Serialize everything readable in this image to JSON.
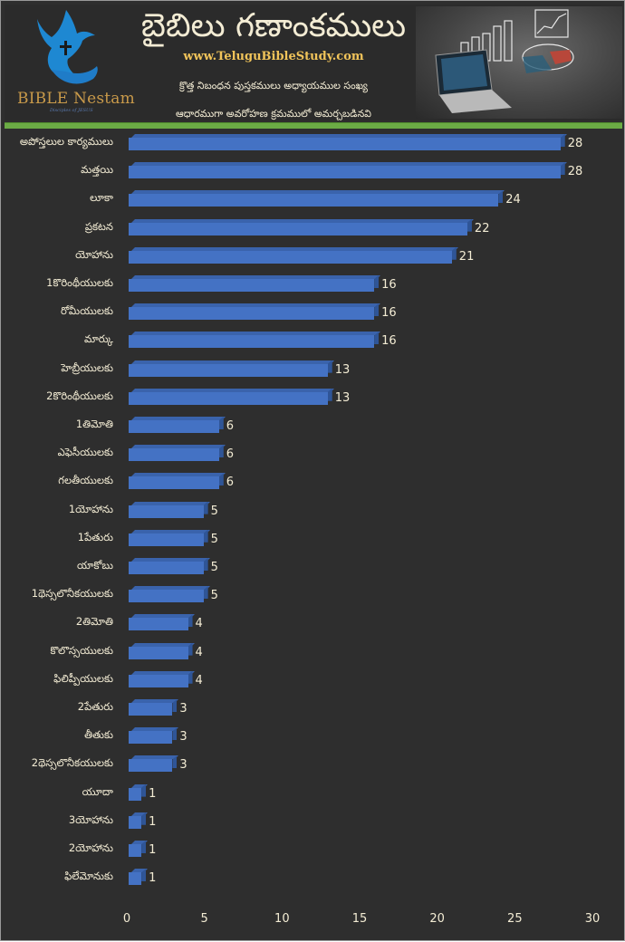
{
  "header": {
    "title": "బైబిలు గణాంకములు",
    "website": "www.TeluguBibleStudy.com",
    "subtitle_line1": "క్రొత్త నిబంధన పుస్తకములు అధ్యాయముల సంఖ్య",
    "subtitle_line2": "ఆధారముగా అవరోహణ క్రమములో అమర్చబడినవి",
    "logo_text": "BIBLE Nestam",
    "logo_tagline": "Disciples of JESUS",
    "logo_icon": "dove-cross-hand-icon",
    "hero_image": "laptop-charts-chalkboard-image"
  },
  "colors": {
    "background": "#2e2e2e",
    "bar": "#4472c4",
    "text": "#f3ecd4",
    "accent_rule": "#6bab45",
    "website": "#f1c45a",
    "logo_text": "#c99a4a",
    "logo_icon": "#1e88d2"
  },
  "chart_data": {
    "type": "bar",
    "orientation": "horizontal",
    "title": "బైబిలు గణాంకములు",
    "subtitle": "క్రొత్త నిబంధన పుస్తకములు అధ్యాయముల సంఖ్య ఆధారముగా అవరోహణ క్రమములో అమర్చబడినవి",
    "xlabel": "",
    "ylabel": "",
    "xlim": [
      0,
      30
    ],
    "xticks": [
      "0",
      "5",
      "10",
      "15",
      "20",
      "25",
      "30"
    ],
    "grid": false,
    "legend": null,
    "data_labels": true,
    "categories": [
      "అపోస్తలుల కార్యములు",
      "మత్తయి",
      "లూకా",
      "ప్రకటన",
      "యోహాను",
      "1కొరింథీయులకు",
      "రోమీయులకు",
      "మార్కు",
      "హెబ్రీయులకు",
      "2కొరింథీయులకు",
      "1తిమోతి",
      "ఎఫెసీయులకు",
      "గలతీయులకు",
      "1యోహాను",
      "1పేతురు",
      "యాకోబు",
      "1థెస్సలొనీకయులకు",
      "2తిమోతి",
      "కొలొస్సయులకు",
      "ఫిలిప్పీయులకు",
      "2పేతురు",
      "తీతుకు",
      "2థెస్సలొనీకయులకు",
      "యూదా",
      "3యోహాను",
      "2యోహాను",
      "ఫిలేమోనుకు"
    ],
    "values": [
      28,
      28,
      24,
      22,
      21,
      16,
      16,
      16,
      13,
      13,
      6,
      6,
      6,
      5,
      5,
      5,
      5,
      4,
      4,
      4,
      3,
      3,
      3,
      1,
      1,
      1,
      1
    ]
  }
}
